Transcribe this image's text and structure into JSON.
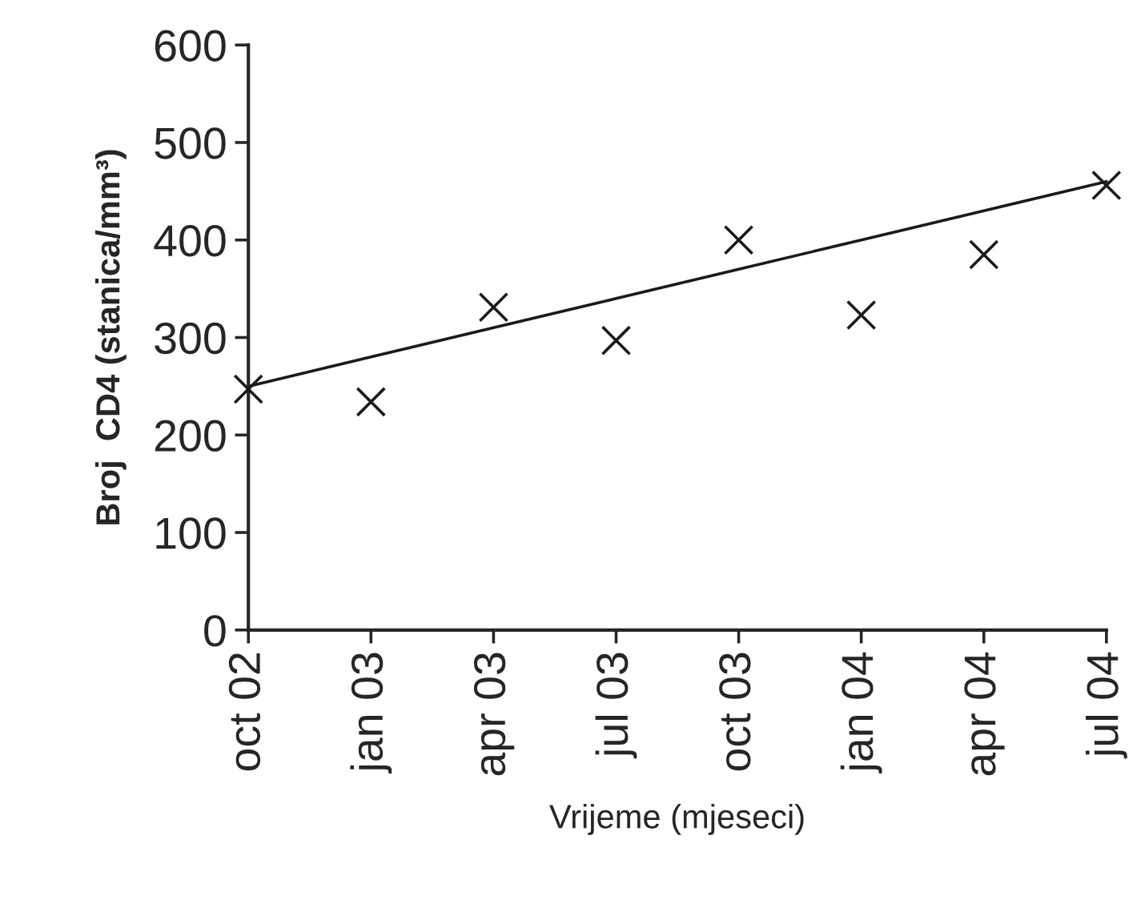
{
  "chart_data": {
    "type": "scatter",
    "xlabel": "Vrijeme (mjeseci)",
    "ylabel": "Broj  CD4 (stanica/mm³)",
    "categories": [
      "oct 02",
      "jan 03",
      "apr 03",
      "jul 03",
      "oct 03",
      "jan 04",
      "apr 04",
      "jul 04"
    ],
    "series": [
      {
        "color": "#1a1a1a",
        "marker": "cross",
        "values": [
          247,
          234,
          331,
          297,
          400,
          323,
          385,
          456
        ]
      },
      {
        "type": "line",
        "color": "#1a1a1a",
        "marker": "none",
        "line_style": "solid",
        "values": [
          250,
          280,
          310,
          340,
          370,
          400,
          430,
          460
        ]
      }
    ],
    "ylim": [
      0,
      600
    ],
    "yticks": [
      0,
      100,
      200,
      300,
      400,
      500,
      600
    ],
    "grid": false,
    "legend": false
  }
}
